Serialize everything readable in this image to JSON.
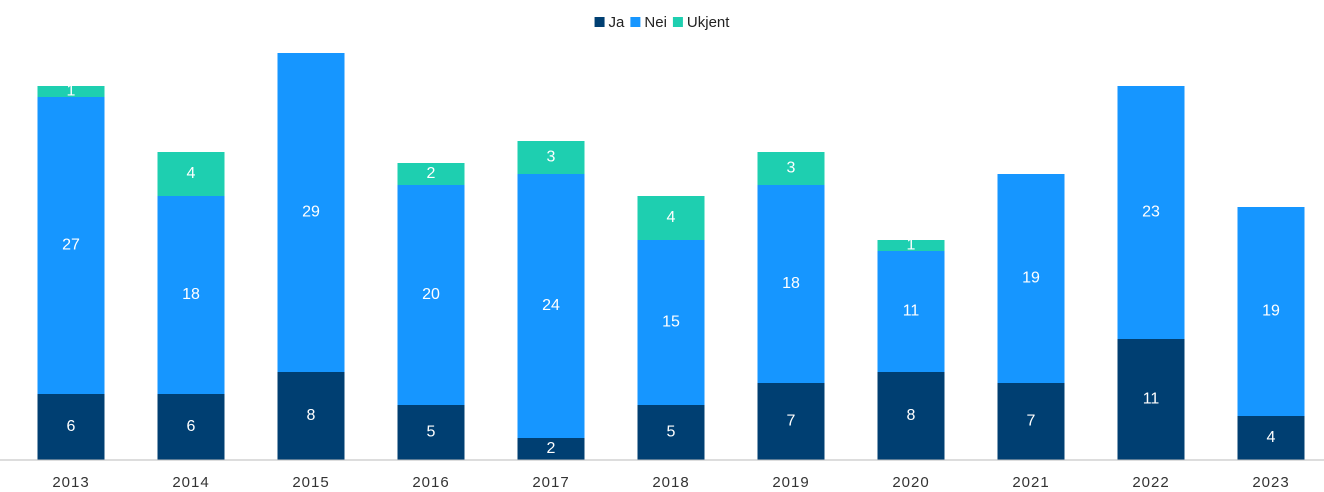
{
  "chart_data": {
    "type": "stacked_bar",
    "categories": [
      "2013",
      "2014",
      "2015",
      "2016",
      "2017",
      "2018",
      "2019",
      "2020",
      "2021",
      "2022",
      "2023"
    ],
    "series": [
      {
        "name": "Ja",
        "color": "#003f72",
        "values": [
          6,
          6,
          8,
          5,
          2,
          5,
          7,
          8,
          7,
          11,
          4
        ]
      },
      {
        "name": "Nei",
        "color": "#1696ff",
        "values": [
          27,
          18,
          29,
          20,
          24,
          15,
          18,
          11,
          19,
          23,
          19
        ]
      },
      {
        "name": "Ukjent",
        "color": "#1ecfb0",
        "values": [
          1,
          4,
          null,
          2,
          3,
          4,
          3,
          1,
          null,
          null,
          null
        ]
      }
    ],
    "ylim": [
      0,
      37
    ],
    "legend": "top"
  }
}
